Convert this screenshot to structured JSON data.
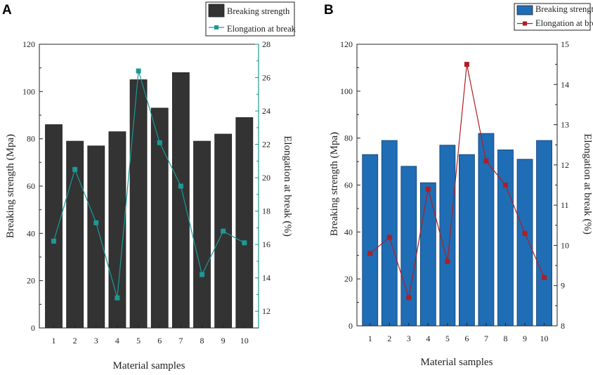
{
  "chart_data": [
    {
      "panel": "A",
      "type": "bar",
      "categories": [
        "1",
        "2",
        "3",
        "4",
        "5",
        "6",
        "7",
        "8",
        "9",
        "10"
      ],
      "series": [
        {
          "name": "Breaking strength",
          "kind": "bar",
          "axis": "left",
          "color": "#333333",
          "values": [
            86,
            79,
            77,
            83,
            105,
            93,
            108,
            79,
            82,
            89
          ]
        },
        {
          "name": "Elongation at break",
          "kind": "line",
          "axis": "right",
          "color": "#1a9a96",
          "values": [
            16.2,
            20.5,
            17.3,
            12.8,
            26.4,
            22.1,
            19.5,
            14.2,
            16.8,
            16.1
          ]
        }
      ],
      "xlabel": "Material samples",
      "ylabel": "Breaking strength (Mpa)",
      "y2label": "Elongation at break (%)",
      "ylim": [
        0,
        120
      ],
      "yticks": [
        0,
        20,
        40,
        60,
        80,
        100,
        120
      ],
      "y2lim": [
        11,
        28
      ],
      "y2ticks": [
        12,
        14,
        16,
        18,
        20,
        22,
        24,
        26,
        28
      ],
      "legend": "top-right"
    },
    {
      "panel": "B",
      "type": "bar",
      "categories": [
        "1",
        "2",
        "3",
        "4",
        "5",
        "6",
        "7",
        "8",
        "9",
        "10"
      ],
      "series": [
        {
          "name": "Breaking strength",
          "kind": "bar",
          "axis": "left",
          "color": "#1f6db5",
          "values": [
            73,
            79,
            68,
            61,
            77,
            73,
            82,
            75,
            71,
            79
          ]
        },
        {
          "name": "Elongation at break",
          "kind": "line",
          "axis": "right",
          "color": "#b01e23",
          "values": [
            9.8,
            10.2,
            8.7,
            11.4,
            9.6,
            14.5,
            12.1,
            11.5,
            10.3,
            9.2
          ]
        }
      ],
      "xlabel": "Material samples",
      "ylabel": "Breaking strength (Mpa)",
      "y2label": "Elongation at break (%)",
      "ylim": [
        0,
        120
      ],
      "yticks": [
        0,
        20,
        40,
        60,
        80,
        100,
        120
      ],
      "y2lim": [
        8,
        15
      ],
      "y2ticks": [
        8,
        9,
        10,
        11,
        12,
        13,
        14,
        15
      ],
      "legend": "top-right"
    }
  ]
}
